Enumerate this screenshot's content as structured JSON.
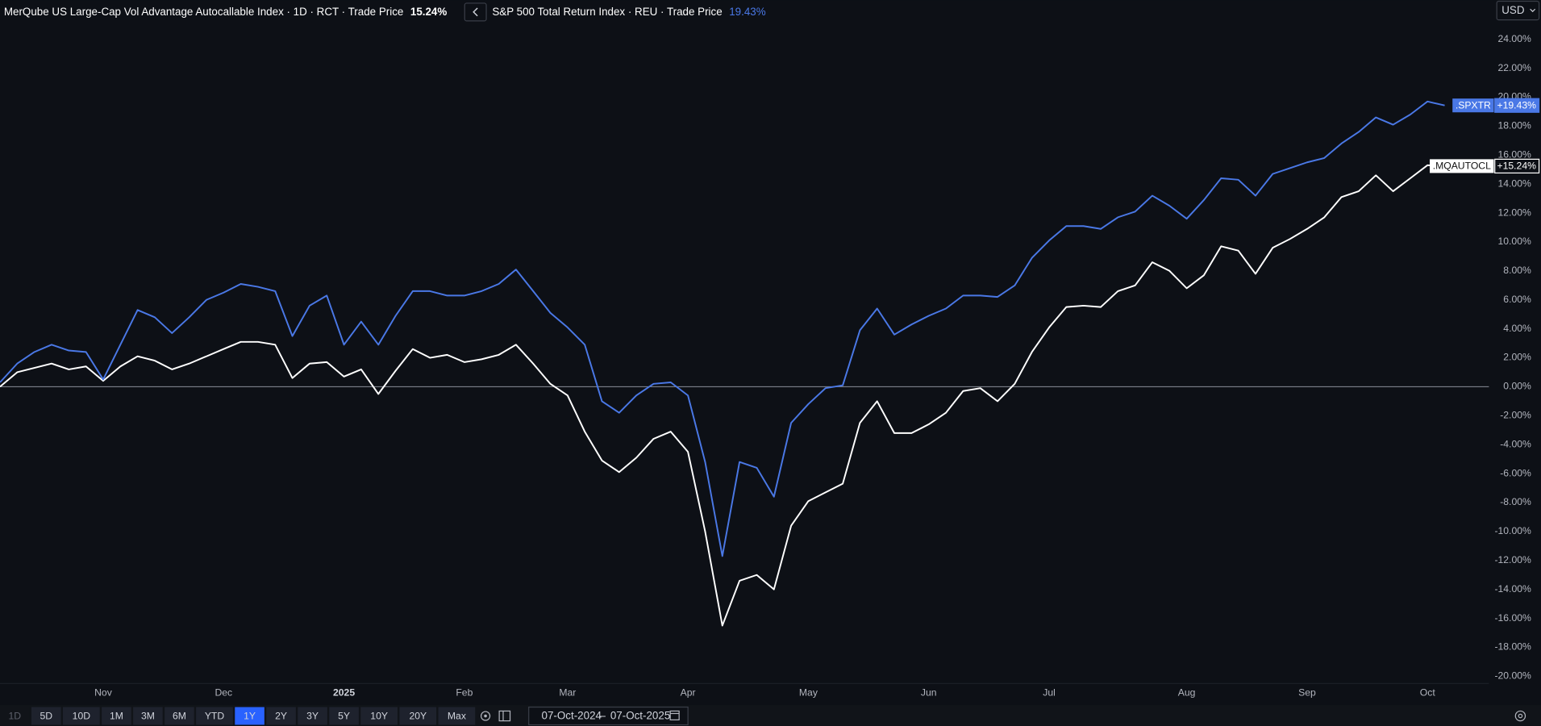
{
  "chart_data": {
    "type": "line",
    "categories": [
      null,
      null,
      null,
      null,
      null,
      null,
      "Nov",
      null,
      null,
      null,
      null,
      null,
      null,
      "Dec",
      null,
      null,
      null,
      null,
      null,
      null,
      "2025",
      null,
      null,
      null,
      null,
      null,
      null,
      "Feb",
      null,
      null,
      null,
      null,
      null,
      "Mar",
      null,
      null,
      null,
      null,
      null,
      null,
      "Apr",
      null,
      null,
      null,
      null,
      null,
      null,
      "May",
      null,
      null,
      null,
      null,
      null,
      null,
      "Jun",
      null,
      null,
      null,
      null,
      null,
      null,
      "Jul",
      null,
      null,
      null,
      null,
      null,
      null,
      null,
      "Aug",
      null,
      null,
      null,
      null,
      null,
      null,
      "Sep",
      null,
      null,
      null,
      null,
      null,
      null,
      "Oct",
      null
    ],
    "series": [
      {
        "name": "MerQube US Large-Cap Vol Advantage Autocallable Index · 1D · RCT · Trade Price",
        "header_value": "15.24%",
        "ticker": ".MQAUTOCL",
        "last_label": "+15.24%",
        "color": "#ffffff",
        "values": [
          0.0,
          1.0,
          1.3,
          1.6,
          1.2,
          1.4,
          0.4,
          1.4,
          2.1,
          1.8,
          1.2,
          1.6,
          2.1,
          2.6,
          3.1,
          3.1,
          2.9,
          0.6,
          1.6,
          1.7,
          0.7,
          1.2,
          -0.5,
          1.1,
          2.6,
          2.0,
          2.2,
          1.7,
          1.9,
          2.2,
          2.9,
          1.6,
          0.2,
          -0.6,
          -3.1,
          -5.1,
          -5.9,
          -4.9,
          -3.6,
          -3.1,
          -4.5,
          -10.0,
          -16.5,
          -13.4,
          -13.0,
          -14.0,
          -9.6,
          -7.9,
          -7.3,
          -6.7,
          -2.5,
          -1.0,
          -3.2,
          -3.2,
          -2.6,
          -1.8,
          -0.3,
          -0.1,
          -1.0,
          0.2,
          2.4,
          4.1,
          5.5,
          5.6,
          5.5,
          6.6,
          7.0,
          8.6,
          8.0,
          6.8,
          7.7,
          9.7,
          9.4,
          7.8,
          9.6,
          10.2,
          10.9,
          11.7,
          13.1,
          13.5,
          14.6,
          13.5,
          14.4,
          15.3,
          15.24
        ]
      },
      {
        "name": "S&P 500 Total Return Index · REU · Trade Price",
        "header_value": "19.43%",
        "ticker": ".SPXTR",
        "last_label": "+19.43%",
        "color": "#4a78e6",
        "values": [
          0.3,
          1.6,
          2.4,
          2.9,
          2.5,
          2.4,
          0.5,
          2.9,
          5.3,
          4.8,
          3.7,
          4.8,
          6.0,
          6.5,
          7.1,
          6.9,
          6.6,
          3.5,
          5.6,
          6.3,
          2.9,
          4.5,
          2.9,
          4.9,
          6.6,
          6.6,
          6.3,
          6.3,
          6.6,
          7.1,
          8.1,
          6.6,
          5.1,
          4.1,
          2.9,
          -1.0,
          -1.8,
          -0.6,
          0.2,
          0.3,
          -0.6,
          -5.2,
          -11.7,
          -5.2,
          -5.6,
          -7.6,
          -2.5,
          -1.2,
          -0.1,
          0.1,
          3.9,
          5.4,
          3.6,
          4.3,
          4.9,
          5.4,
          6.3,
          6.3,
          6.2,
          7.0,
          8.9,
          10.1,
          11.1,
          11.1,
          10.9,
          11.7,
          12.1,
          13.2,
          12.5,
          11.6,
          12.9,
          14.4,
          14.3,
          13.2,
          14.7,
          15.1,
          15.5,
          15.8,
          16.8,
          17.6,
          18.6,
          18.1,
          18.8,
          19.7,
          19.43
        ]
      }
    ],
    "ylim": [
      -20.5,
      25
    ],
    "yticks": [
      {
        "value": -20,
        "label": "-20.00%"
      },
      {
        "value": -18,
        "label": "-18.00%"
      },
      {
        "value": -16,
        "label": "-16.00%"
      },
      {
        "value": -14,
        "label": "-14.00%"
      },
      {
        "value": -12,
        "label": "-12.00%"
      },
      {
        "value": -10,
        "label": "-10.00%"
      },
      {
        "value": -8,
        "label": "-8.00%"
      },
      {
        "value": -6,
        "label": "-6.00%"
      },
      {
        "value": -4,
        "label": "-4.00%"
      },
      {
        "value": -2,
        "label": "-2.00%"
      },
      {
        "value": 0,
        "label": "0.00%"
      },
      {
        "value": 2,
        "label": "2.00%"
      },
      {
        "value": 4,
        "label": "4.00%"
      },
      {
        "value": 6,
        "label": "6.00%"
      },
      {
        "value": 8,
        "label": "8.00%"
      },
      {
        "value": 10,
        "label": "10.00%"
      },
      {
        "value": 12,
        "label": "12.00%"
      },
      {
        "value": 14,
        "label": "14.00%"
      },
      {
        "value": 16,
        "label": "16.00%"
      },
      {
        "value": 18,
        "label": "18.00%"
      },
      {
        "value": 20,
        "label": "20.00%"
      },
      {
        "value": 22,
        "label": "22.00%"
      },
      {
        "value": 24,
        "label": "24.00%"
      }
    ],
    "hline": 0,
    "grid": false
  },
  "currency": "USD",
  "toolbar": {
    "ranges": [
      "1D",
      "5D",
      "10D",
      "1M",
      "3M",
      "6M",
      "YTD",
      "1Y",
      "2Y",
      "3Y",
      "5Y",
      "10Y",
      "20Y",
      "Max"
    ],
    "active": "1Y",
    "disabled": "1D",
    "date_from": "07-Oct-2024",
    "date_sep": "–",
    "date_to": "07-Oct-2025"
  }
}
